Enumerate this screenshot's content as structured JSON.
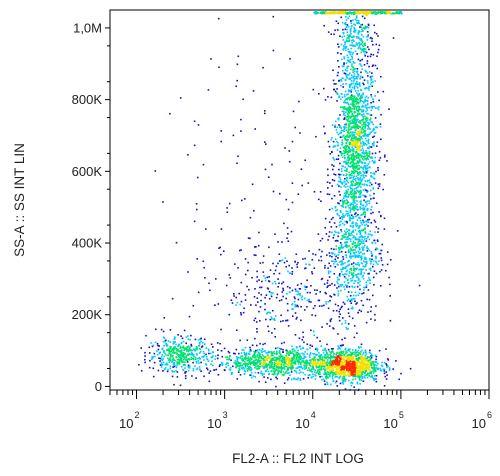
{
  "chart_data": {
    "type": "scatter",
    "title": "",
    "xlabel": "FL2-A :: FL2 INT LOG",
    "ylabel": "SS-A :: SS INT LIN",
    "x_scale": "log",
    "xlim": [
      50,
      1000000
    ],
    "ylim": [
      -10000,
      1050000
    ],
    "x_ticks": [
      {
        "value": 100,
        "base": "10",
        "exp": "2"
      },
      {
        "value": 1000,
        "base": "10",
        "exp": "3"
      },
      {
        "value": 10000,
        "base": "10",
        "exp": "4"
      },
      {
        "value": 100000,
        "base": "10",
        "exp": "5"
      },
      {
        "value": 1000000,
        "base": "10",
        "exp": "6"
      }
    ],
    "y_ticks": [
      {
        "value": 0,
        "label": "0"
      },
      {
        "value": 200000,
        "label": "200K"
      },
      {
        "value": 400000,
        "label": "400K"
      },
      {
        "value": 600000,
        "label": "600K"
      },
      {
        "value": 800000,
        "label": "800K"
      },
      {
        "value": 1000000,
        "label": "1,0M"
      }
    ],
    "grid": false,
    "legend": "none",
    "density_colormap": [
      "#1010c8",
      "#00c8ff",
      "#00e070",
      "#f0e000",
      "#ff2800"
    ],
    "populations": [
      {
        "x_center": 30000,
        "x_log_spread": 0.12,
        "y_center": 680000,
        "y_spread": 120000,
        "weight": 0.28
      },
      {
        "x_center": 28000,
        "x_log_spread": 0.15,
        "y_center": 380000,
        "y_spread": 90000,
        "weight": 0.12
      },
      {
        "x_center": 25000,
        "x_log_spread": 0.18,
        "y_center": 60000,
        "y_spread": 22000,
        "weight": 0.2
      },
      {
        "x_center": 4000,
        "x_log_spread": 0.35,
        "y_center": 70000,
        "y_spread": 20000,
        "weight": 0.18
      },
      {
        "x_center": 300,
        "x_log_spread": 0.18,
        "y_center": 90000,
        "y_spread": 25000,
        "weight": 0.08
      },
      {
        "x_center": 6000,
        "x_log_spread": 0.4,
        "y_center": 260000,
        "y_spread": 70000,
        "weight": 0.06
      },
      {
        "x_center": 30000,
        "x_log_spread": 0.12,
        "y_center": 970000,
        "y_spread": 50000,
        "weight": 0.05
      },
      {
        "x_center": 3000,
        "x_log_spread": 0.6,
        "y_center": 500000,
        "y_spread": 250000,
        "weight": 0.03
      }
    ],
    "saturation_band": {
      "x_min": 10000,
      "x_max": 100000,
      "y": 1050000
    }
  }
}
